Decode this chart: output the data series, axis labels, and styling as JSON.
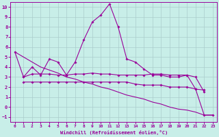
{
  "xlabel": "Windchill (Refroidissement éolien,°C)",
  "bg_color": "#c8eee8",
  "line_color": "#990099",
  "grid_color": "#aacccc",
  "xlim": [
    -0.5,
    23.5
  ],
  "ylim": [
    -1.5,
    10.5
  ],
  "xticks": [
    0,
    1,
    2,
    3,
    4,
    5,
    6,
    7,
    8,
    9,
    10,
    11,
    12,
    13,
    14,
    15,
    16,
    17,
    18,
    19,
    20,
    21,
    22,
    23
  ],
  "yticks": [
    -1,
    0,
    1,
    2,
    3,
    4,
    5,
    6,
    7,
    8,
    9,
    10
  ],
  "series": {
    "spiky": [
      5.5,
      3.0,
      4.0,
      3.2,
      4.8,
      4.5,
      3.2,
      4.5,
      6.7,
      8.5,
      9.2,
      10.3,
      8.0,
      4.8,
      4.5,
      3.8,
      3.2,
      3.2,
      3.0,
      3.0,
      3.2,
      1.8,
      1.7,
      null
    ],
    "flat_upper": [
      null,
      3.0,
      3.3,
      3.3,
      3.3,
      3.2,
      3.2,
      3.3,
      3.3,
      3.4,
      3.3,
      3.3,
      3.2,
      3.2,
      3.2,
      3.2,
      3.3,
      3.3,
      3.2,
      3.2,
      3.2,
      3.0,
      1.5,
      null
    ],
    "flat_lower": [
      null,
      2.5,
      2.5,
      2.5,
      2.5,
      2.5,
      2.5,
      2.5,
      2.5,
      2.5,
      2.5,
      2.5,
      2.5,
      2.5,
      2.3,
      2.2,
      2.2,
      2.2,
      2.0,
      2.0,
      2.0,
      1.8,
      -0.8,
      -0.8
    ],
    "diagonal": [
      5.5,
      5.0,
      4.5,
      4.0,
      3.7,
      3.4,
      3.0,
      2.8,
      2.5,
      2.3,
      2.0,
      1.8,
      1.5,
      1.2,
      1.0,
      0.8,
      0.5,
      0.3,
      0.0,
      -0.2,
      -0.3,
      -0.5,
      -0.8,
      -0.8
    ]
  }
}
